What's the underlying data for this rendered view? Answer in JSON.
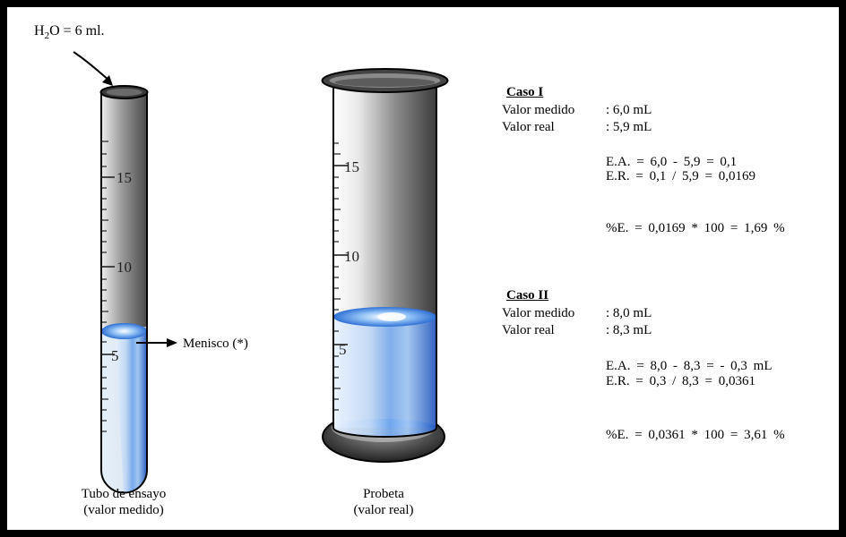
{
  "top_label": {
    "prefix": "H",
    "sub": "2",
    "suffix": "O = 6 ml."
  },
  "meniscus_label": "Menisco (*)",
  "tube": {
    "ticks": [
      "15",
      "10",
      "5"
    ],
    "caption_line1": "Tubo de ensayo",
    "caption_line2": "(valor medido)"
  },
  "cylinder": {
    "ticks": [
      "15",
      "10",
      "5"
    ],
    "caption_line1": "Probeta",
    "caption_line2": "(valor real)"
  },
  "caso1": {
    "title": "Caso I",
    "medido_label": "Valor medido",
    "medido_value": ": 6,0 mL",
    "real_label": "Valor real",
    "real_value": ": 5,9 mL",
    "ea": "E.A. = 6,0 - 5,9 = 0,1",
    "er": "E.R. = 0,1 / 5,9 = 0,0169",
    "pe": "%E. = 0,0169 * 100 = 1,69 %"
  },
  "caso2": {
    "title": "Caso II",
    "medido_label": "Valor medido",
    "medido_value": ": 8,0 mL",
    "real_label": "Valor real",
    "real_value": ": 8,3 mL",
    "ea": "E.A. = 8,0 - 8,3 = - 0,3 mL",
    "er": "E.R. = 0,3 / 8,3 = 0,0361",
    "pe": "%E. = 0,0361 * 100 = 3,61 %"
  },
  "colors": {
    "water": "#3a78d8",
    "glass_dark": "#5a5a5a",
    "frame": "#000000"
  }
}
